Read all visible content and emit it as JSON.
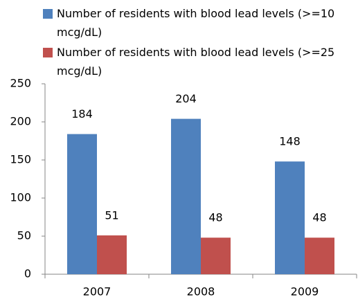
{
  "chart_data": {
    "type": "bar",
    "categories": [
      "2007",
      "2008",
      "2009"
    ],
    "series": [
      {
        "name": "Number of residents with blood lead levels (>=10 mcg/dL)",
        "color": "#4f81bd",
        "values": [
          184,
          204,
          148
        ]
      },
      {
        "name": "Number of residents with blood lead levels (>=25 mcg/dL)",
        "color": "#c0504d",
        "values": [
          51,
          48,
          48
        ]
      }
    ],
    "ylim": [
      0,
      250
    ],
    "yticks": [
      0,
      50,
      100,
      150,
      200,
      250
    ],
    "grid": false,
    "legend": "top"
  }
}
